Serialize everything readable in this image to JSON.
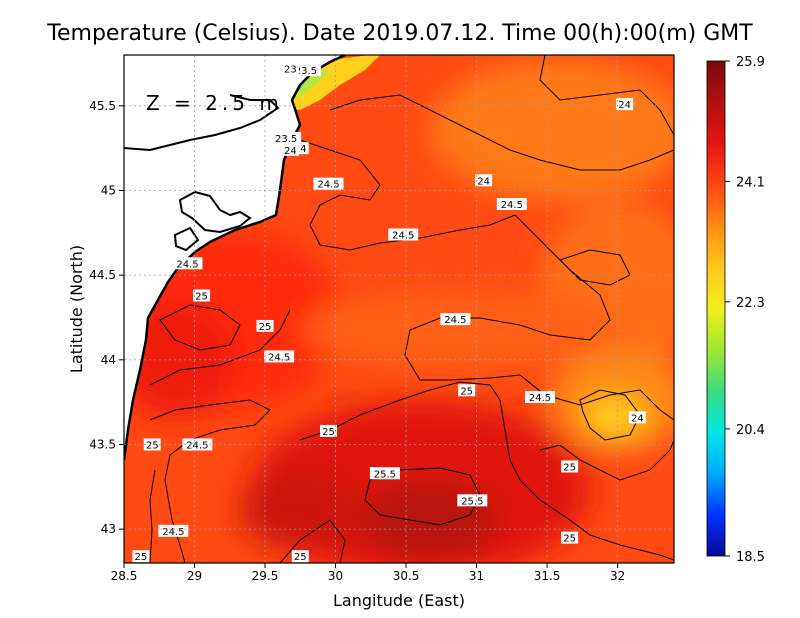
{
  "chart_data": {
    "type": "heatmap",
    "title": "Temperature (Celsius). Date 2019.07.12. Time 00(h):00(m)  GMT",
    "annotation": "Z = 2.5 m",
    "xlabel": "Langitude (East)",
    "ylabel": "Latitude (North)",
    "xlim": [
      28.5,
      32.4
    ],
    "ylim": [
      42.8,
      45.8
    ],
    "x_ticks": [
      {
        "value": 28.5,
        "label": "28.5"
      },
      {
        "value": 29,
        "label": "29"
      },
      {
        "value": 29.5,
        "label": "29.5"
      },
      {
        "value": 30,
        "label": "30"
      },
      {
        "value": 30.5,
        "label": "30.5"
      },
      {
        "value": 31,
        "label": "31"
      },
      {
        "value": 31.5,
        "label": "31.5"
      },
      {
        "value": 32,
        "label": "32"
      }
    ],
    "y_ticks": [
      {
        "value": 43,
        "label": "43"
      },
      {
        "value": 43.5,
        "label": "43.5"
      },
      {
        "value": 44,
        "label": "44"
      },
      {
        "value": 44.5,
        "label": "44.5"
      },
      {
        "value": 45,
        "label": "45"
      },
      {
        "value": 45.5,
        "label": "45.5"
      }
    ],
    "grid": true,
    "colorbar": {
      "min": 18.5,
      "max": 25.9,
      "ticks": [
        {
          "value": 25.9,
          "label": "25.9"
        },
        {
          "value": 24.1,
          "label": "24.1"
        },
        {
          "value": 22.3,
          "label": "22.3"
        },
        {
          "value": 20.4,
          "label": "20.4"
        },
        {
          "value": 18.5,
          "label": "18.5"
        }
      ],
      "colors": [
        "#0a0a96",
        "#0032ff",
        "#00aaff",
        "#00e6e6",
        "#3cdc82",
        "#a0e632",
        "#f0f01e",
        "#ffc81e",
        "#ff8c14",
        "#ff4614",
        "#e61414",
        "#b40f0f",
        "#780a0a"
      ]
    },
    "contour_labels": [
      {
        "lon": 32.05,
        "lat": 45.51,
        "value": "24"
      },
      {
        "lon": 29.79,
        "lat": 45.71,
        "value": "23.5"
      },
      {
        "lon": 29.68,
        "lat": 45.72,
        "value": "23"
      },
      {
        "lon": 29.75,
        "lat": 45.25,
        "value": "24"
      },
      {
        "lon": 29.65,
        "lat": 45.31,
        "value": "23.5"
      },
      {
        "lon": 29.68,
        "lat": 45.24,
        "value": "24"
      },
      {
        "lon": 31.05,
        "lat": 45.06,
        "value": "24"
      },
      {
        "lon": 29.95,
        "lat": 45.04,
        "value": "24.5"
      },
      {
        "lon": 31.25,
        "lat": 44.92,
        "value": "24.5"
      },
      {
        "lon": 30.48,
        "lat": 44.74,
        "value": "24.5"
      },
      {
        "lon": 28.95,
        "lat": 44.57,
        "value": "24.5"
      },
      {
        "lon": 29.05,
        "lat": 44.38,
        "value": "25"
      },
      {
        "lon": 30.85,
        "lat": 44.24,
        "value": "24.5"
      },
      {
        "lon": 29.5,
        "lat": 44.2,
        "value": "25"
      },
      {
        "lon": 29.6,
        "lat": 44.02,
        "value": "24.5"
      },
      {
        "lon": 30.93,
        "lat": 43.82,
        "value": "25"
      },
      {
        "lon": 31.45,
        "lat": 43.78,
        "value": "24.5"
      },
      {
        "lon": 32.14,
        "lat": 43.66,
        "value": "24"
      },
      {
        "lon": 29.95,
        "lat": 43.58,
        "value": "25"
      },
      {
        "lon": 28.7,
        "lat": 43.5,
        "value": "25"
      },
      {
        "lon": 29.02,
        "lat": 43.5,
        "value": "24.5"
      },
      {
        "lon": 30.35,
        "lat": 43.33,
        "value": "25.5"
      },
      {
        "lon": 31.66,
        "lat": 43.37,
        "value": "25"
      },
      {
        "lon": 30.97,
        "lat": 43.17,
        "value": "25.5"
      },
      {
        "lon": 28.85,
        "lat": 42.99,
        "value": "24.5"
      },
      {
        "lon": 31.66,
        "lat": 42.95,
        "value": "25"
      },
      {
        "lon": 28.62,
        "lat": 42.84,
        "value": "25"
      },
      {
        "lon": 29.75,
        "lat": 42.84,
        "value": "25"
      }
    ]
  }
}
